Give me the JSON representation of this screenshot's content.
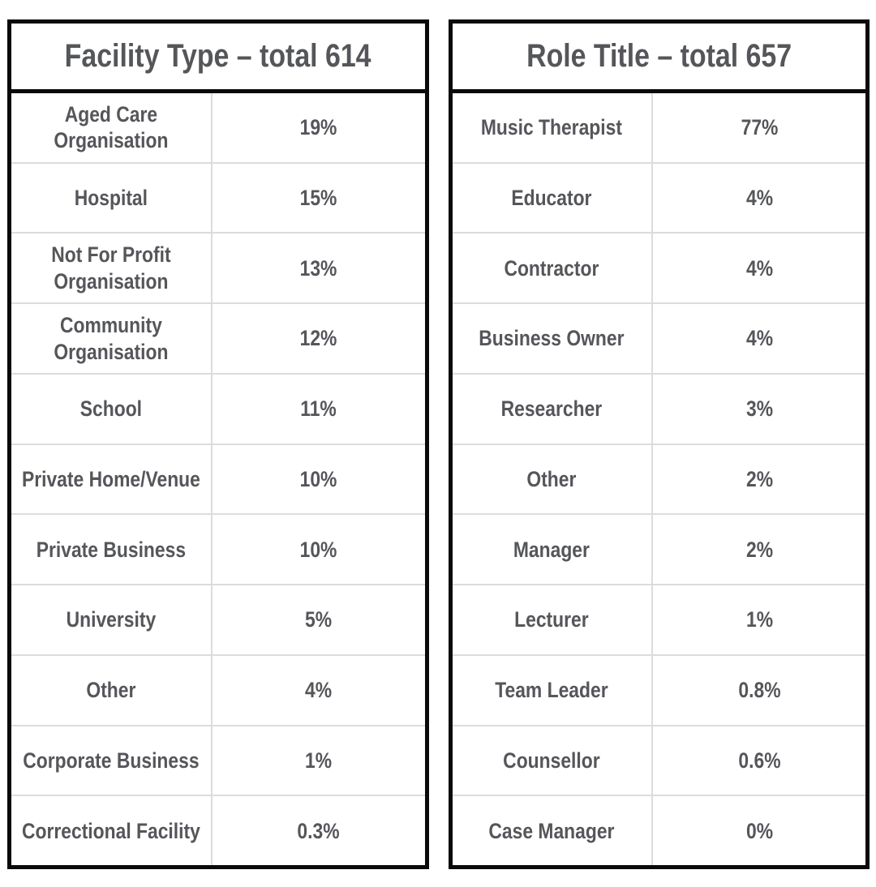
{
  "colors": {
    "text": "#55565a",
    "border": "#0a0a0a",
    "divider": "#dcdcdc",
    "background": "#ffffff"
  },
  "tables": [
    {
      "title": "Facility Type – total 614",
      "rows": [
        {
          "label": "Aged Care\nOrganisation",
          "value": "19%"
        },
        {
          "label": "Hospital",
          "value": "15%"
        },
        {
          "label": "Not For Profit\nOrganisation",
          "value": "13%"
        },
        {
          "label": "Community\nOrganisation",
          "value": "12%"
        },
        {
          "label": "School",
          "value": "11%"
        },
        {
          "label": "Private Home/Venue",
          "value": "10%"
        },
        {
          "label": "Private Business",
          "value": "10%"
        },
        {
          "label": "University",
          "value": "5%"
        },
        {
          "label": "Other",
          "value": "4%"
        },
        {
          "label": "Corporate Business",
          "value": "1%"
        },
        {
          "label": "Correctional Facility",
          "value": "0.3%"
        }
      ]
    },
    {
      "title": "Role Title – total 657",
      "rows": [
        {
          "label": "Music Therapist",
          "value": "77%"
        },
        {
          "label": "Educator",
          "value": "4%"
        },
        {
          "label": "Contractor",
          "value": "4%"
        },
        {
          "label": "Business Owner",
          "value": "4%"
        },
        {
          "label": "Researcher",
          "value": "3%"
        },
        {
          "label": "Other",
          "value": "2%"
        },
        {
          "label": "Manager",
          "value": "2%"
        },
        {
          "label": "Lecturer",
          "value": "1%"
        },
        {
          "label": "Team Leader",
          "value": "0.8%"
        },
        {
          "label": "Counsellor",
          "value": "0.6%"
        },
        {
          "label": "Case Manager",
          "value": "0%"
        }
      ]
    }
  ],
  "chart_data": [
    {
      "type": "table",
      "title": "Facility Type – total 614",
      "total": 614,
      "categories": [
        "Aged Care Organisation",
        "Hospital",
        "Not For Profit Organisation",
        "Community Organisation",
        "School",
        "Private Home/Venue",
        "Private Business",
        "University",
        "Other",
        "Corporate Business",
        "Correctional Facility"
      ],
      "values_percent": [
        19,
        15,
        13,
        12,
        11,
        10,
        10,
        5,
        4,
        1,
        0.3
      ]
    },
    {
      "type": "table",
      "title": "Role Title – total 657",
      "total": 657,
      "categories": [
        "Music Therapist",
        "Educator",
        "Contractor",
        "Business Owner",
        "Researcher",
        "Other",
        "Manager",
        "Lecturer",
        "Team Leader",
        "Counsellor",
        "Case Manager"
      ],
      "values_percent": [
        77,
        4,
        4,
        4,
        3,
        2,
        2,
        1,
        0.8,
        0.6,
        0
      ]
    }
  ]
}
